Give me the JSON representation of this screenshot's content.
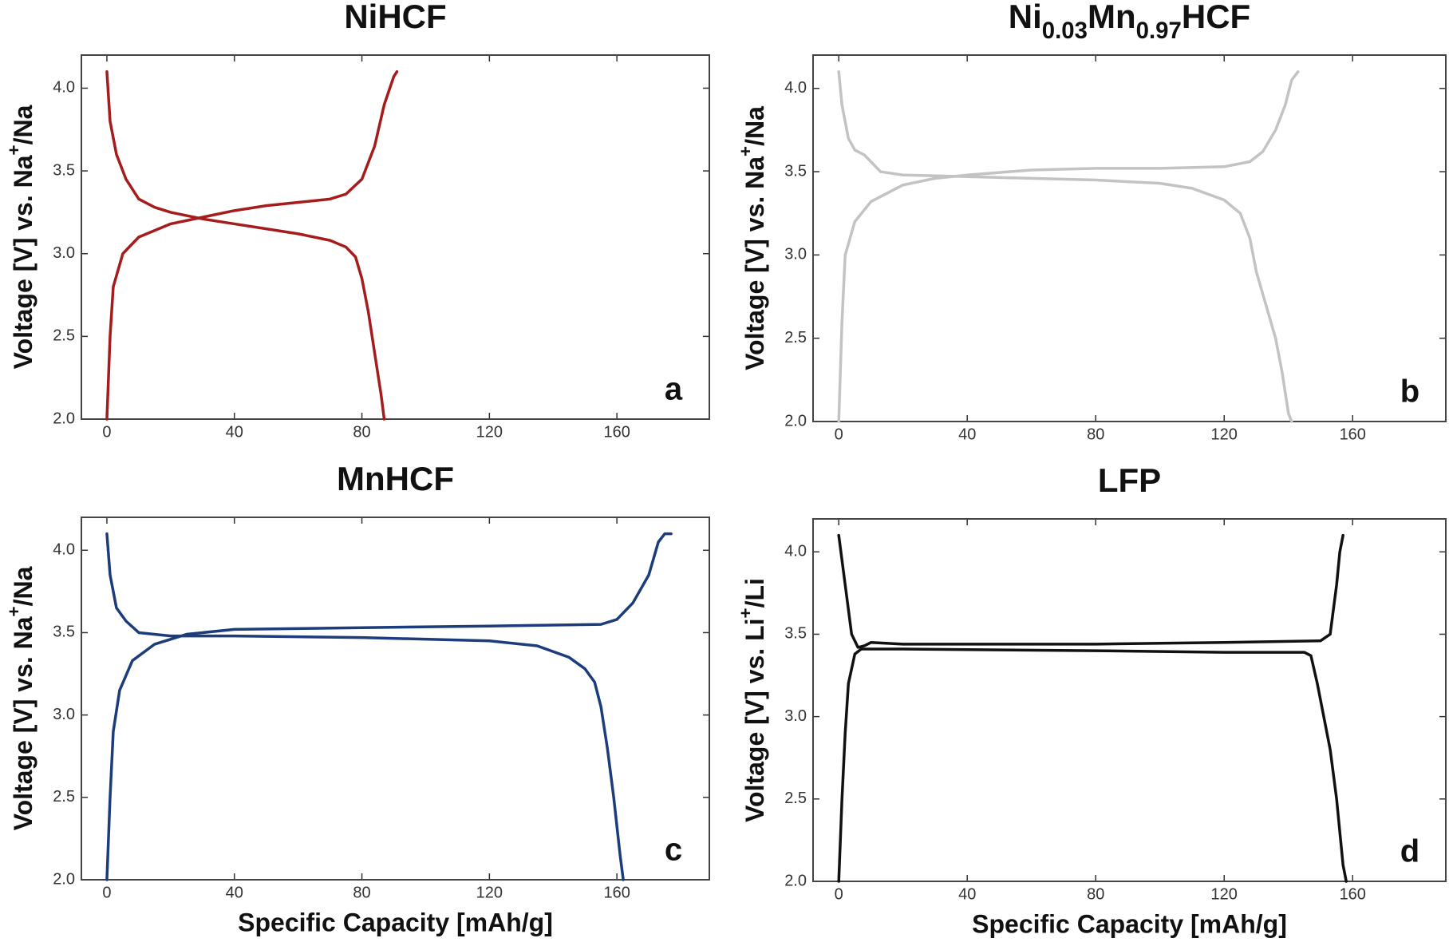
{
  "chart_data": [
    {
      "type": "line",
      "title": [
        {
          "text": "NiHCF"
        }
      ],
      "panel": "a",
      "ylabel": [
        {
          "text": "Voltage [V] vs. Na"
        },
        {
          "text": "+",
          "sup": true
        },
        {
          "text": "/Na"
        }
      ],
      "xlim": [
        -8,
        189
      ],
      "ylim": [
        2.0,
        4.2
      ],
      "xticks": [
        0,
        40,
        80,
        120,
        160
      ],
      "yticks": [
        {
          "value": 2,
          "label": "2.0"
        },
        {
          "value": 2.5,
          "label": "2.5"
        },
        {
          "value": 3,
          "label": "3.0"
        },
        {
          "value": 3.5,
          "label": "3.5"
        },
        {
          "value": 4,
          "label": "4.0"
        }
      ],
      "series": [
        {
          "color": "#a51c1c",
          "x": [
            0,
            1,
            2,
            5,
            10,
            20,
            30,
            40,
            50,
            60,
            70,
            75,
            80,
            84,
            87,
            90,
            91
          ],
          "values": [
            2.0,
            2.5,
            2.8,
            3.0,
            3.1,
            3.18,
            3.22,
            3.26,
            3.29,
            3.31,
            3.33,
            3.36,
            3.45,
            3.65,
            3.9,
            4.07,
            4.1
          ]
        },
        {
          "color": "#a51c1c",
          "x": [
            0,
            1,
            3,
            6,
            10,
            15,
            20,
            30,
            40,
            50,
            60,
            70,
            75,
            78,
            80,
            82,
            84,
            86,
            87
          ],
          "values": [
            4.1,
            3.8,
            3.6,
            3.45,
            3.33,
            3.28,
            3.25,
            3.21,
            3.18,
            3.15,
            3.12,
            3.08,
            3.04,
            2.98,
            2.85,
            2.65,
            2.4,
            2.15,
            2.0
          ]
        }
      ]
    },
    {
      "type": "line",
      "title": [
        {
          "text": "Ni"
        },
        {
          "text": "0.03",
          "sub": true
        },
        {
          "text": "Mn"
        },
        {
          "text": "0.97",
          "sub": true
        },
        {
          "text": "HCF"
        }
      ],
      "panel": "b",
      "ylabel": [
        {
          "text": "Voltage [V] vs. Na"
        },
        {
          "text": "+",
          "sup": true
        },
        {
          "text": "/Na"
        }
      ],
      "xlim": [
        -8,
        189
      ],
      "ylim": [
        2.0,
        4.2
      ],
      "xticks": [
        0,
        40,
        80,
        120,
        160
      ],
      "yticks": [
        {
          "value": 2,
          "label": "2.0"
        },
        {
          "value": 2.5,
          "label": "2.5"
        },
        {
          "value": 3,
          "label": "3.0"
        },
        {
          "value": 3.5,
          "label": "3.5"
        },
        {
          "value": 4,
          "label": "4.0"
        }
      ],
      "series": [
        {
          "color": "#c3c3c3",
          "x": [
            0,
            1,
            2,
            5,
            10,
            20,
            30,
            40,
            60,
            80,
            100,
            120,
            128,
            132,
            136,
            139,
            141,
            143
          ],
          "values": [
            2.0,
            2.6,
            3.0,
            3.2,
            3.32,
            3.42,
            3.46,
            3.48,
            3.51,
            3.52,
            3.52,
            3.53,
            3.56,
            3.62,
            3.75,
            3.9,
            4.05,
            4.1
          ]
        },
        {
          "color": "#c3c3c3",
          "x": [
            0,
            1,
            3,
            5,
            8,
            10,
            13,
            20,
            40,
            60,
            80,
            100,
            110,
            120,
            125,
            128,
            130,
            133,
            136,
            138,
            140,
            141
          ],
          "values": [
            4.1,
            3.9,
            3.7,
            3.63,
            3.6,
            3.56,
            3.5,
            3.48,
            3.47,
            3.46,
            3.45,
            3.43,
            3.4,
            3.33,
            3.25,
            3.1,
            2.9,
            2.7,
            2.5,
            2.3,
            2.05,
            2.0
          ]
        }
      ]
    },
    {
      "type": "line",
      "title": [
        {
          "text": "MnHCF"
        }
      ],
      "panel": "c",
      "xlabel": "Specific Capacity [mAh/g]",
      "ylabel": [
        {
          "text": "Voltage [V] vs. Na"
        },
        {
          "text": "+",
          "sup": true
        },
        {
          "text": "/Na"
        }
      ],
      "xlim": [
        -8,
        189
      ],
      "ylim": [
        2.0,
        4.2
      ],
      "xticks": [
        0,
        40,
        80,
        120,
        160
      ],
      "yticks": [
        {
          "value": 2,
          "label": "2.0"
        },
        {
          "value": 2.5,
          "label": "2.5"
        },
        {
          "value": 3,
          "label": "3.0"
        },
        {
          "value": 3.5,
          "label": "3.5"
        },
        {
          "value": 4,
          "label": "4.0"
        }
      ],
      "series": [
        {
          "color": "#1c3c7c",
          "x": [
            0,
            1,
            2,
            4,
            8,
            15,
            25,
            40,
            80,
            120,
            155,
            160,
            165,
            170,
            173,
            175,
            177
          ],
          "values": [
            2.0,
            2.5,
            2.9,
            3.15,
            3.33,
            3.43,
            3.49,
            3.52,
            3.53,
            3.54,
            3.55,
            3.58,
            3.68,
            3.85,
            4.05,
            4.1,
            4.1
          ]
        },
        {
          "color": "#1c3c7c",
          "x": [
            0,
            1,
            3,
            6,
            10,
            20,
            40,
            80,
            120,
            135,
            145,
            150,
            153,
            155,
            157,
            159,
            161,
            162
          ],
          "values": [
            4.1,
            3.85,
            3.65,
            3.57,
            3.5,
            3.48,
            3.48,
            3.47,
            3.45,
            3.42,
            3.35,
            3.28,
            3.2,
            3.05,
            2.8,
            2.5,
            2.15,
            2.0
          ]
        }
      ]
    },
    {
      "type": "line",
      "title": [
        {
          "text": "LFP"
        }
      ],
      "panel": "d",
      "xlabel": "Specific Capacity [mAh/g]",
      "ylabel": [
        {
          "text": "Voltage [V] vs. Li"
        },
        {
          "text": "+",
          "sup": true
        },
        {
          "text": "/Li"
        }
      ],
      "xlim": [
        -8,
        189
      ],
      "ylim": [
        2.0,
        4.2
      ],
      "xticks": [
        0,
        40,
        80,
        120,
        160
      ],
      "yticks": [
        {
          "value": 2,
          "label": "2.0"
        },
        {
          "value": 2.5,
          "label": "2.5"
        },
        {
          "value": 3,
          "label": "3.0"
        },
        {
          "value": 3.5,
          "label": "3.5"
        },
        {
          "value": 4,
          "label": "4.0"
        }
      ],
      "series": [
        {
          "color": "#111111",
          "x": [
            0,
            1,
            2,
            3,
            5,
            7,
            20,
            80,
            120,
            145,
            147,
            149,
            151,
            153,
            155,
            157,
            158
          ],
          "values": [
            2.0,
            2.5,
            2.9,
            3.2,
            3.38,
            3.41,
            3.41,
            3.4,
            3.39,
            3.39,
            3.37,
            3.2,
            3.0,
            2.8,
            2.5,
            2.1,
            2.0
          ]
        },
        {
          "color": "#111111",
          "x": [
            0,
            2,
            4,
            6,
            8,
            10,
            20,
            80,
            120,
            150,
            153,
            155,
            156,
            157
          ],
          "values": [
            4.1,
            3.8,
            3.5,
            3.42,
            3.43,
            3.45,
            3.44,
            3.44,
            3.45,
            3.46,
            3.5,
            3.8,
            4.0,
            4.1
          ]
        }
      ]
    }
  ]
}
